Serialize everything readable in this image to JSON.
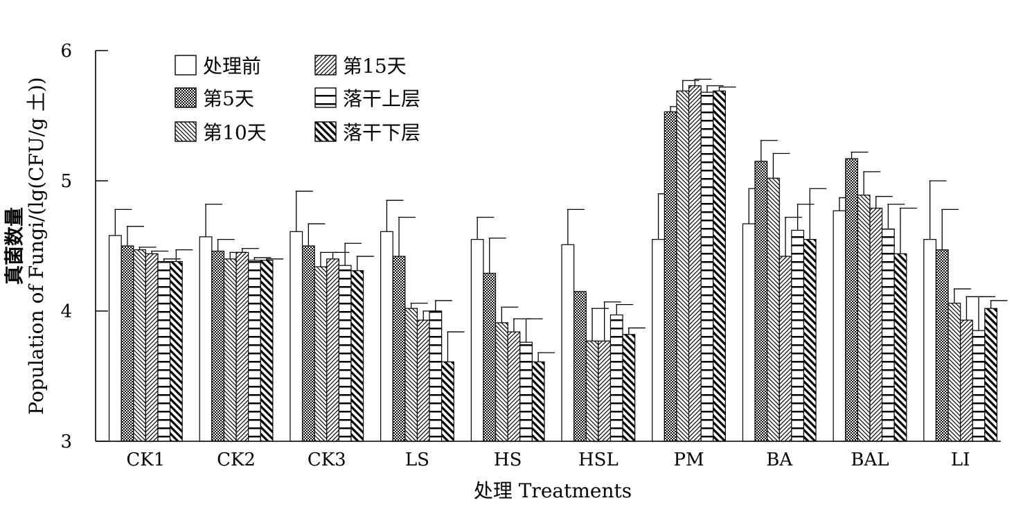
{
  "chart_data": {
    "type": "bar",
    "xlabel": "处理 Treatments",
    "ylabel_cn": "真菌数量",
    "ylabel_en": "Population of Fungi/(lg(CFU/g 土))",
    "ylim": [
      3,
      6
    ],
    "yticks": [
      "3",
      "4",
      "5",
      "6"
    ],
    "grid": false,
    "legend_position": "top-left",
    "categories": [
      "CK1",
      "CK2",
      "CK3",
      "LS",
      "HS",
      "HSL",
      "PM",
      "BA",
      "BAL",
      "LI"
    ],
    "series": [
      {
        "name": "处理前",
        "pattern": "empty",
        "values": [
          4.58,
          4.57,
          4.61,
          4.61,
          4.55,
          4.51,
          4.55,
          4.67,
          4.77,
          4.55
        ],
        "errors": [
          0.2,
          0.25,
          0.31,
          0.24,
          0.17,
          0.27,
          0.35,
          0.27,
          0.1,
          0.45
        ]
      },
      {
        "name": "第5天",
        "pattern": "checker",
        "values": [
          4.5,
          4.46,
          4.5,
          4.42,
          4.29,
          4.15,
          5.53,
          5.15,
          5.17,
          4.47
        ],
        "errors": [
          0.15,
          0.09,
          0.17,
          0.3,
          0.27,
          0.0,
          0.04,
          0.16,
          0.05,
          0.31
        ]
      },
      {
        "name": "第10天",
        "pattern": "backslash",
        "values": [
          4.47,
          4.4,
          4.34,
          4.02,
          3.91,
          3.77,
          5.69,
          5.02,
          4.89,
          4.06
        ],
        "errors": [
          0.02,
          0.05,
          0.11,
          0.04,
          0.12,
          0.25,
          0.08,
          0.19,
          0.18,
          0.11
        ]
      },
      {
        "name": "第15天",
        "pattern": "slash",
        "values": [
          4.44,
          4.45,
          4.4,
          3.93,
          3.84,
          3.77,
          5.73,
          4.42,
          4.79,
          3.93
        ],
        "errors": [
          0.02,
          0.03,
          0.05,
          0.07,
          0.1,
          0.3,
          0.05,
          0.3,
          0.09,
          0.18
        ]
      },
      {
        "name": "落干上层",
        "pattern": "hlines",
        "values": [
          4.38,
          4.39,
          4.35,
          4.0,
          3.76,
          3.97,
          5.68,
          4.62,
          4.63,
          3.85
        ],
        "errors": [
          0.02,
          0.02,
          0.17,
          0.08,
          0.18,
          0.08,
          0.05,
          0.2,
          0.19,
          0.26
        ]
      },
      {
        "name": "落干下层",
        "pattern": "thickbackslash",
        "values": [
          4.38,
          4.39,
          4.31,
          3.61,
          3.61,
          3.82,
          5.69,
          4.55,
          4.44,
          4.02
        ],
        "errors": [
          0.09,
          0.01,
          0.11,
          0.23,
          0.07,
          0.05,
          0.03,
          0.39,
          0.35,
          0.06
        ]
      }
    ]
  }
}
